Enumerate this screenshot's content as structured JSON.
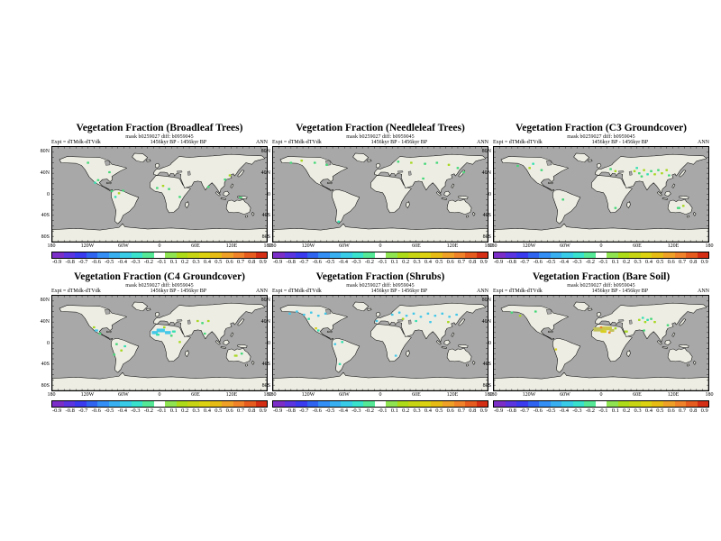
{
  "page": {
    "background": "#FFFFFF"
  },
  "map_colors": {
    "ocean": "#A8A8A8",
    "land": "#EDEDE4",
    "coast": "#000000"
  },
  "spot_colors": {
    "cyan": "#45C8E8",
    "teal": "#35E0B0",
    "green": "#45D878",
    "yg": "#A8D822",
    "yellow": "#D8D020",
    "olive": "#C2C25A",
    "olive2": "#CDC848",
    "orange": "#E8872A"
  },
  "axes": {
    "lat_labels": [
      "80N",
      "40N",
      "0",
      "40S",
      "80S"
    ],
    "lat_tops": [
      6,
      30,
      53.5,
      77,
      101
    ],
    "lon_labels": [
      "180",
      "120W",
      "60W",
      "0",
      "60E",
      "120E",
      "180"
    ],
    "lon_lefts": [
      0,
      40,
      80,
      120,
      160,
      200,
      240
    ]
  },
  "colorbar": {
    "labels": [
      "-0.9",
      "-0.8",
      "-0.7",
      "-0.6",
      "-0.5",
      "-0.4",
      "-0.3",
      "-0.2",
      "-0.1",
      "0.1",
      "0.2",
      "0.3",
      "0.4",
      "0.5",
      "0.6",
      "0.7",
      "0.8",
      "0.9"
    ],
    "colors": [
      "#7B2FC8",
      "#5A35E0",
      "#3A3AEE",
      "#2E64F0",
      "#338EF5",
      "#38AFF0",
      "#38CCE8",
      "#38E2CC",
      "#55E896",
      "#FFFFFF",
      "#8FE452",
      "#AEDB18",
      "#C6D414",
      "#DCD212",
      "#E6BC14",
      "#EFA026",
      "#F0822A",
      "#E65C1E",
      "#D42E14"
    ]
  },
  "panels": [
    {
      "title": "Vegetation Fraction (Broadleaf Trees)",
      "mask_line": "mask b0259027 diff: b0959045",
      "expt_label": "Expt = dTMdk-dTVdk",
      "period_label": "1456kyr BP - 1456kyr BP",
      "season_label": "ANN",
      "spots": [
        [
          72,
          68,
          "teal"
        ],
        [
          77,
          63,
          "green"
        ],
        [
          100,
          84,
          "green"
        ],
        [
          112,
          88,
          "yg"
        ],
        [
          119,
          83,
          "green"
        ],
        [
          106,
          95,
          "teal"
        ],
        [
          176,
          78,
          "green"
        ],
        [
          186,
          74,
          "yg"
        ],
        [
          196,
          80,
          "green"
        ],
        [
          214,
          95,
          "green"
        ],
        [
          262,
          76,
          "green"
        ],
        [
          290,
          62,
          "green"
        ],
        [
          298,
          54,
          "yg"
        ],
        [
          316,
          96,
          "green",
          6,
          3
        ],
        [
          96,
          48,
          "green"
        ],
        [
          60,
          30,
          "green"
        ]
      ]
    },
    {
      "title": "Vegetation Fraction (Needleleaf Trees)",
      "mask_line": "mask b0259027 diff: b0959045",
      "expt_label": "Expt = dTMdk-dTVdk",
      "period_label": "1456kyr BP - 1456kyr BP",
      "season_label": "ANN",
      "spots": [
        [
          30,
          30,
          "green"
        ],
        [
          48,
          26,
          "yg"
        ],
        [
          70,
          30,
          "green"
        ],
        [
          90,
          34,
          "green"
        ],
        [
          210,
          28,
          "green"
        ],
        [
          232,
          30,
          "yg"
        ],
        [
          255,
          32,
          "green"
        ],
        [
          275,
          30,
          "green"
        ],
        [
          295,
          34,
          "yg"
        ],
        [
          310,
          40,
          "green"
        ],
        [
          320,
          48,
          "green"
        ],
        [
          110,
          142,
          "teal"
        ],
        [
          252,
          60,
          "green"
        ]
      ]
    },
    {
      "title": "Vegetation Fraction (C3 Groundcover)",
      "mask_line": "mask b0259027 diff: b0959045",
      "expt_label": "Expt = dTMdk-dTVdk",
      "period_label": "1456kyr BP - 1456kyr BP",
      "season_label": "ANN",
      "spots": [
        [
          236,
          46,
          "yg"
        ],
        [
          244,
          50,
          "green"
        ],
        [
          252,
          44,
          "yg"
        ],
        [
          258,
          52,
          "teal"
        ],
        [
          264,
          46,
          "green"
        ],
        [
          270,
          52,
          "yg"
        ],
        [
          276,
          44,
          "green"
        ],
        [
          282,
          50,
          "yg"
        ],
        [
          248,
          56,
          "green"
        ],
        [
          240,
          40,
          "teal"
        ],
        [
          196,
          42,
          "green"
        ],
        [
          204,
          46,
          "yg"
        ],
        [
          40,
          36,
          "green"
        ],
        [
          60,
          40,
          "yg"
        ],
        [
          80,
          44,
          "green"
        ],
        [
          66,
          32,
          "teal"
        ],
        [
          310,
          116,
          "green",
          6,
          4
        ],
        [
          318,
          112,
          "yg"
        ],
        [
          116,
          100,
          "green"
        ],
        [
          204,
          116,
          "green"
        ],
        [
          294,
          54,
          "green"
        ],
        [
          290,
          44,
          "yg"
        ]
      ]
    },
    {
      "title": "Vegetation Fraction (C4 Groundcover)",
      "mask_line": "mask b0259027 diff: b0959045",
      "expt_label": "Expt = dTMdk-dTVdk",
      "period_label": "1456kyr BP - 1456kyr BP",
      "season_label": "ANN",
      "spots": [
        [
          172,
          70,
          "cyan",
          10,
          6
        ],
        [
          182,
          66,
          "cyan",
          14,
          7
        ],
        [
          194,
          70,
          "cyan",
          10,
          6
        ],
        [
          204,
          68,
          "teal",
          6,
          4
        ],
        [
          177,
          74,
          "teal",
          6,
          4
        ],
        [
          188,
          60,
          "yg"
        ],
        [
          200,
          76,
          "green"
        ],
        [
          74,
          66,
          "cyan",
          6,
          4
        ],
        [
          80,
          72,
          "green"
        ],
        [
          70,
          60,
          "yg"
        ],
        [
          108,
          92,
          "green"
        ],
        [
          116,
          104,
          "yg"
        ],
        [
          104,
          112,
          "green"
        ],
        [
          122,
          96,
          "teal"
        ],
        [
          256,
          72,
          "green"
        ],
        [
          244,
          48,
          "yg"
        ],
        [
          252,
          52,
          "green"
        ],
        [
          262,
          48,
          "yg"
        ],
        [
          308,
          114,
          "yg",
          6,
          4
        ],
        [
          318,
          110,
          "green"
        ],
        [
          214,
          88,
          "yg"
        ]
      ]
    },
    {
      "title": "Vegetation Fraction (Shrubs)",
      "mask_line": "mask b0259027 diff: b0959045",
      "expt_label": "Expt = dTMdk-dTVdk",
      "period_label": "1456kyr BP - 1456kyr BP",
      "season_label": "ANN",
      "spots": [
        [
          28,
          34,
          "cyan"
        ],
        [
          40,
          30,
          "cyan"
        ],
        [
          52,
          36,
          "cyan"
        ],
        [
          64,
          32,
          "cyan"
        ],
        [
          76,
          38,
          "cyan"
        ],
        [
          88,
          34,
          "cyan"
        ],
        [
          60,
          44,
          "teal"
        ],
        [
          72,
          62,
          "yellow"
        ],
        [
          76,
          66,
          "teal"
        ],
        [
          200,
          36,
          "cyan"
        ],
        [
          212,
          32,
          "cyan"
        ],
        [
          224,
          38,
          "cyan"
        ],
        [
          236,
          34,
          "cyan"
        ],
        [
          248,
          40,
          "cyan"
        ],
        [
          260,
          34,
          "cyan"
        ],
        [
          272,
          38,
          "cyan"
        ],
        [
          284,
          34,
          "cyan"
        ],
        [
          296,
          40,
          "cyan"
        ],
        [
          308,
          36,
          "cyan"
        ],
        [
          240,
          48,
          "teal"
        ],
        [
          264,
          50,
          "cyan"
        ],
        [
          218,
          44,
          "yg"
        ],
        [
          294,
          50,
          "yg"
        ],
        [
          174,
          48,
          "cyan"
        ],
        [
          104,
          92,
          "cyan"
        ],
        [
          112,
          130,
          "teal"
        ],
        [
          206,
          114,
          "cyan"
        ],
        [
          116,
          88,
          "teal"
        ]
      ]
    },
    {
      "title": "Vegetation Fraction (Bare Soil)",
      "mask_line": "mask b0259027 diff: b0959045",
      "expt_label": "Expt = dTMdk-dTVdk",
      "period_label": "1456kyr BP - 1456kyr BP",
      "season_label": "ANN",
      "spots": [
        [
          176,
          64,
          "olive",
          18,
          8
        ],
        [
          190,
          62,
          "olive2",
          16,
          7
        ],
        [
          184,
          68,
          "yellow",
          10,
          5
        ],
        [
          198,
          66,
          "olive",
          8,
          5
        ],
        [
          180,
          60,
          "orange"
        ],
        [
          194,
          70,
          "orange"
        ],
        [
          204,
          62,
          "yg"
        ],
        [
          222,
          68,
          "yg",
          6,
          4
        ],
        [
          244,
          46,
          "yg"
        ],
        [
          254,
          50,
          "yg"
        ],
        [
          264,
          44,
          "green"
        ],
        [
          250,
          42,
          "teal"
        ],
        [
          258,
          46,
          "teal"
        ],
        [
          270,
          50,
          "yg"
        ],
        [
          252,
          66,
          "green"
        ],
        [
          30,
          32,
          "green"
        ],
        [
          44,
          38,
          "yg"
        ],
        [
          70,
          30,
          "green"
        ],
        [
          104,
          102,
          "yellow"
        ],
        [
          292,
          56,
          "green"
        ]
      ]
    }
  ],
  "chart_data": [
    {
      "type": "heatmap",
      "title": "Vegetation Fraction (Broadleaf Trees)",
      "projection": "equirectangular global map",
      "xlabel_ticks": [
        "180",
        "120W",
        "60W",
        "0",
        "60E",
        "120E",
        "180"
      ],
      "ylabel_ticks": [
        "80N",
        "40N",
        "0",
        "40S",
        "80S"
      ],
      "scale": {
        "min": -0.9,
        "max": 0.9,
        "ticks": [
          -0.9,
          -0.8,
          -0.7,
          -0.6,
          -0.5,
          -0.4,
          -0.3,
          -0.2,
          -0.1,
          0.1,
          0.2,
          0.3,
          0.4,
          0.5,
          0.6,
          0.7,
          0.8,
          0.9
        ]
      },
      "summary": "mostly near-zero anomaly; small positive (green/yellow) spots in Central America, Amazonia, equatorial Africa, East Asia, New Guinea"
    },
    {
      "type": "heatmap",
      "title": "Vegetation Fraction (Needleleaf Trees)",
      "projection": "equirectangular global map",
      "xlabel_ticks": [
        "180",
        "120W",
        "60W",
        "0",
        "60E",
        "120E",
        "180"
      ],
      "ylabel_ticks": [
        "80N",
        "40N",
        "0",
        "40S",
        "80S"
      ],
      "scale": {
        "min": -0.9,
        "max": 0.9,
        "ticks": [
          -0.9,
          -0.8,
          -0.7,
          -0.6,
          -0.5,
          -0.4,
          -0.3,
          -0.2,
          -0.1,
          0.1,
          0.2,
          0.3,
          0.4,
          0.5,
          0.6,
          0.7,
          0.8,
          0.9
        ]
      },
      "summary": "sparse positive spots across boreal North America and Eurasia"
    },
    {
      "type": "heatmap",
      "title": "Vegetation Fraction (C3 Groundcover)",
      "projection": "equirectangular global map",
      "xlabel_ticks": [
        "180",
        "120W",
        "60W",
        "0",
        "60E",
        "120E",
        "180"
      ],
      "ylabel_ticks": [
        "80N",
        "40N",
        "0",
        "40S",
        "80S"
      ],
      "scale": {
        "min": -0.9,
        "max": 0.9,
        "ticks": [
          -0.9,
          -0.8,
          -0.7,
          -0.6,
          -0.5,
          -0.4,
          -0.3,
          -0.2,
          -0.1,
          0.1,
          0.2,
          0.3,
          0.4,
          0.5,
          0.6,
          0.7,
          0.8,
          0.9
        ]
      },
      "summary": "cluster of positive (green/yellow-green) spots over central and eastern Asia, few in Europe, North America and Australia"
    },
    {
      "type": "heatmap",
      "title": "Vegetation Fraction (C4 Groundcover)",
      "projection": "equirectangular global map",
      "xlabel_ticks": [
        "180",
        "120W",
        "60W",
        "0",
        "60E",
        "120E",
        "180"
      ],
      "ylabel_ticks": [
        "80N",
        "40N",
        "0",
        "40S",
        "80S"
      ],
      "scale": {
        "min": -0.9,
        "max": 0.9,
        "ticks": [
          -0.9,
          -0.8,
          -0.7,
          -0.6,
          -0.5,
          -0.4,
          -0.3,
          -0.2,
          -0.1,
          0.1,
          0.2,
          0.3,
          0.4,
          0.5,
          0.6,
          0.7,
          0.8,
          0.9
        ]
      },
      "summary": "negative (cyan) patch across Sahara/Sahel, scattered spots in Central America, South America, central Asia, Australia"
    },
    {
      "type": "heatmap",
      "title": "Vegetation Fraction (Shrubs)",
      "projection": "equirectangular global map",
      "xlabel_ticks": [
        "180",
        "120W",
        "60W",
        "0",
        "60E",
        "120E",
        "180"
      ],
      "ylabel_ticks": [
        "80N",
        "40N",
        "0",
        "40S",
        "80S"
      ],
      "scale": {
        "min": -0.9,
        "max": 0.9,
        "ticks": [
          -0.9,
          -0.8,
          -0.7,
          -0.6,
          -0.5,
          -0.4,
          -0.3,
          -0.2,
          -0.1,
          0.1,
          0.2,
          0.3,
          0.4,
          0.5,
          0.6,
          0.7,
          0.8,
          0.9
        ]
      },
      "summary": "many negative (cyan) spots across boreal North America and Eurasia"
    },
    {
      "type": "heatmap",
      "title": "Vegetation Fraction (Bare Soil)",
      "projection": "equirectangular global map",
      "xlabel_ticks": [
        "180",
        "120W",
        "60W",
        "0",
        "60E",
        "120E",
        "180"
      ],
      "ylabel_ticks": [
        "80N",
        "40N",
        "0",
        "40S",
        "80S"
      ],
      "scale": {
        "min": -0.9,
        "max": 0.9,
        "ticks": [
          -0.9,
          -0.8,
          -0.7,
          -0.6,
          -0.5,
          -0.4,
          -0.3,
          -0.2,
          -0.1,
          0.1,
          0.2,
          0.3,
          0.4,
          0.5,
          0.6,
          0.7,
          0.8,
          0.9
        ]
      },
      "summary": "positive (olive/yellow, some orange) patch over Sahara and Arabia, scattered spots in central Asia and the Americas"
    }
  ]
}
